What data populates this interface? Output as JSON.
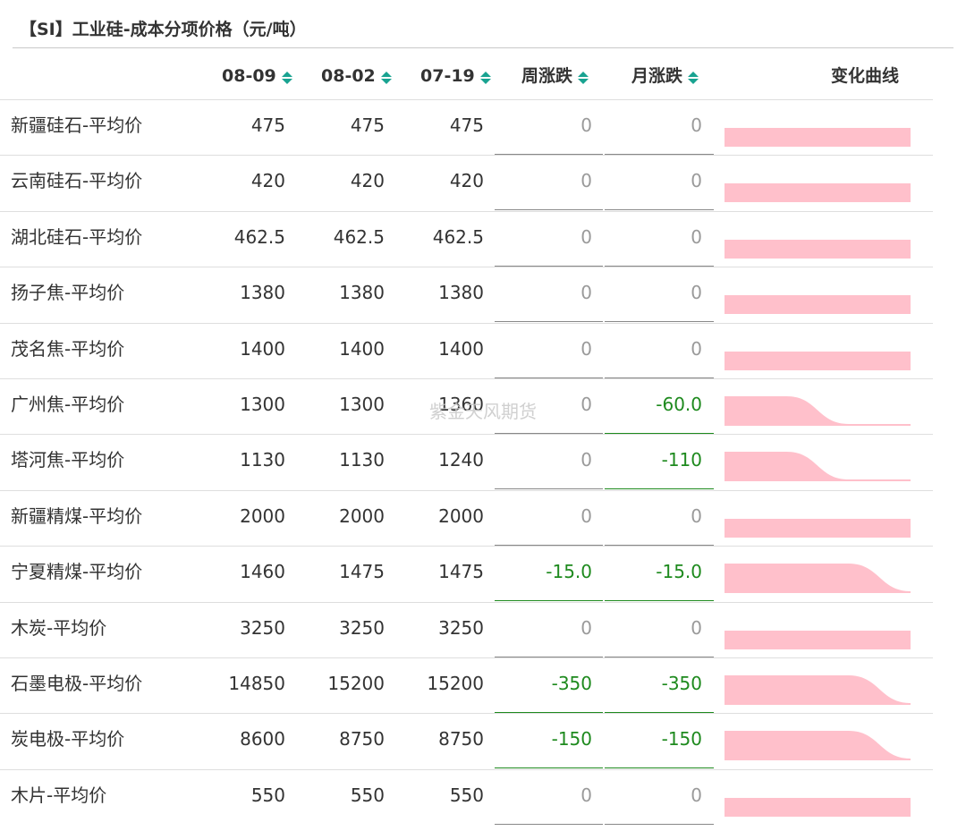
{
  "title": "【SI】工业硅-成本分项价格（元/吨）",
  "columns": {
    "d1": "08-09",
    "d2": "08-02",
    "d3": "07-19",
    "wk": "周涨跌",
    "mo": "月涨跌",
    "trend": "变化曲线"
  },
  "watermark": "紫金天风期货",
  "colors": {
    "sort_icon": "#19a391",
    "negative": "#1e8a1e",
    "zero": "#9a9a9a",
    "spark_fill": "#ffc0cb"
  },
  "rows": [
    {
      "name": "新疆硅石-平均价",
      "d1": "475",
      "d2": "475",
      "d3": "475",
      "wk": "0",
      "mo": "0",
      "trend": [
        475,
        475,
        475,
        475
      ]
    },
    {
      "name": "云南硅石-平均价",
      "d1": "420",
      "d2": "420",
      "d3": "420",
      "wk": "0",
      "mo": "0",
      "trend": [
        420,
        420,
        420,
        420
      ]
    },
    {
      "name": "湖北硅石-平均价",
      "d1": "462.5",
      "d2": "462.5",
      "d3": "462.5",
      "wk": "0",
      "mo": "0",
      "trend": [
        462.5,
        462.5,
        462.5,
        462.5
      ]
    },
    {
      "name": "扬子焦-平均价",
      "d1": "1380",
      "d2": "1380",
      "d3": "1380",
      "wk": "0",
      "mo": "0",
      "trend": [
        1380,
        1380,
        1380,
        1380
      ]
    },
    {
      "name": "茂名焦-平均价",
      "d1": "1400",
      "d2": "1400",
      "d3": "1400",
      "wk": "0",
      "mo": "0",
      "trend": [
        1400,
        1400,
        1400,
        1400
      ]
    },
    {
      "name": "广州焦-平均价",
      "d1": "1300",
      "d2": "1300",
      "d3": "1360",
      "wk": "0",
      "mo": "-60.0",
      "trend": [
        1360,
        1360,
        1300,
        1300
      ]
    },
    {
      "name": "塔河焦-平均价",
      "d1": "1130",
      "d2": "1130",
      "d3": "1240",
      "wk": "0",
      "mo": "-110",
      "trend": [
        1240,
        1240,
        1130,
        1130
      ]
    },
    {
      "name": "新疆精煤-平均价",
      "d1": "2000",
      "d2": "2000",
      "d3": "2000",
      "wk": "0",
      "mo": "0",
      "trend": [
        2000,
        2000,
        2000,
        2000
      ]
    },
    {
      "name": "宁夏精煤-平均价",
      "d1": "1460",
      "d2": "1475",
      "d3": "1475",
      "wk": "-15.0",
      "mo": "-15.0",
      "trend": [
        1475,
        1475,
        1475,
        1460
      ]
    },
    {
      "name": "木炭-平均价",
      "d1": "3250",
      "d2": "3250",
      "d3": "3250",
      "wk": "0",
      "mo": "0",
      "trend": [
        3250,
        3250,
        3250,
        3250
      ]
    },
    {
      "name": "石墨电极-平均价",
      "d1": "14850",
      "d2": "15200",
      "d3": "15200",
      "wk": "-350",
      "mo": "-350",
      "trend": [
        15200,
        15200,
        15200,
        14850
      ]
    },
    {
      "name": "炭电极-平均价",
      "d1": "8600",
      "d2": "8750",
      "d3": "8750",
      "wk": "-150",
      "mo": "-150",
      "trend": [
        8750,
        8750,
        8750,
        8600
      ]
    },
    {
      "name": "木片-平均价",
      "d1": "550",
      "d2": "550",
      "d3": "550",
      "wk": "0",
      "mo": "0",
      "trend": [
        550,
        550,
        550,
        550
      ]
    }
  ]
}
